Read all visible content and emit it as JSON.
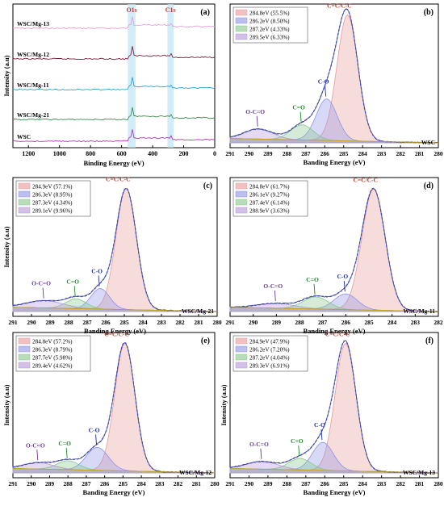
{
  "figure": {
    "panels_order": [
      "a",
      "b",
      "c",
      "d",
      "e",
      "f"
    ]
  },
  "chart_data": [
    {
      "panel": "(a)",
      "type": "line",
      "xlabel": "Binding Energy (eV)",
      "ylabel": "Intensity (a.u)",
      "xlim": [
        1300,
        0
      ],
      "xticks": [
        1200,
        1000,
        800,
        600,
        400,
        200,
        0
      ],
      "region_labels": [
        "O1s",
        "C1s"
      ],
      "regions_eV": [
        [
          510,
          560
        ],
        [
          265,
          305
        ]
      ],
      "series": [
        {
          "name": "WSC/Mg-13",
          "color": "#e6a0d8"
        },
        {
          "name": "WSC/Mg-12",
          "color": "#7a1e3c"
        },
        {
          "name": "WSC/Mg-11",
          "color": "#2aa3d8"
        },
        {
          "name": "WSC/Mg-21",
          "color": "#3c8a4a"
        },
        {
          "name": "WSC",
          "color": "#b23ab0"
        }
      ],
      "peaks_eV": [
        532,
        285
      ]
    },
    {
      "panel": "(b)",
      "type": "area",
      "sample": "WSC",
      "xlabel": "Banding Energy (eV)",
      "ylabel": "",
      "xlim": [
        291,
        280
      ],
      "components": [
        {
          "legend": "284.8eV (55.5%)",
          "center": 284.8,
          "height": 1.0,
          "sigma": 0.55,
          "color": "#e79a9a",
          "label": "C=C/C-C"
        },
        {
          "legend": "286.2eV (8.50%)",
          "center": 285.9,
          "height": 0.33,
          "sigma": 0.55,
          "color": "#8f93e6",
          "label": "C-O"
        },
        {
          "legend": "287.2eV (4.33%)",
          "center": 287.2,
          "height": 0.12,
          "sigma": 0.6,
          "color": "#88c78c",
          "label": "C=O"
        },
        {
          "legend": "289.5eV (6.33%)",
          "center": 289.5,
          "height": 0.08,
          "sigma": 0.75,
          "color": "#b596d6",
          "label": "O-C=O"
        }
      ]
    },
    {
      "panel": "(c)",
      "type": "area",
      "sample": "WSC/Mg-21",
      "xlabel": "Banding Energy (eV)",
      "ylabel": "Intensity (a.u)",
      "xlim": [
        291,
        280
      ],
      "components": [
        {
          "legend": "284.9eV (57.1%)",
          "center": 284.9,
          "height": 1.0,
          "sigma": 0.55,
          "color": "#e79a9a",
          "label": "C=C/C-C"
        },
        {
          "legend": "286.3eV (8.95%)",
          "center": 286.3,
          "height": 0.17,
          "sigma": 0.5,
          "color": "#8f93e6",
          "label": "C-O"
        },
        {
          "legend": "287.3eV (4.34%)",
          "center": 287.6,
          "height": 0.08,
          "sigma": 0.55,
          "color": "#88c78c",
          "label": "C=O"
        },
        {
          "legend": "289.1eV (9.96%)",
          "center": 289.3,
          "height": 0.06,
          "sigma": 1.0,
          "color": "#b596d6",
          "label": "O-C=O"
        }
      ]
    },
    {
      "panel": "(d)",
      "type": "area",
      "sample": "WSC/Mg-11",
      "xlabel": "Banding Energy (eV)",
      "ylabel": "",
      "xlim": [
        291,
        282
      ],
      "components": [
        {
          "legend": "284.8eV (61.7%)",
          "center": 284.8,
          "height": 1.0,
          "sigma": 0.5,
          "color": "#e79a9a",
          "label": "C=C/C-C"
        },
        {
          "legend": "286.1eV (9.27%)",
          "center": 286.0,
          "height": 0.13,
          "sigma": 0.5,
          "color": "#8f93e6",
          "label": "C-O"
        },
        {
          "legend": "287.4eV (6.14%)",
          "center": 287.3,
          "height": 0.1,
          "sigma": 0.55,
          "color": "#88c78c",
          "label": "C=O"
        },
        {
          "legend": "288.9eV (3.63%)",
          "center": 289.0,
          "height": 0.04,
          "sigma": 0.8,
          "color": "#b596d6",
          "label": "O-C=O"
        }
      ]
    },
    {
      "panel": "(e)",
      "type": "area",
      "sample": "WSC/Mg-12",
      "xlabel": "Banding Energy (eV)",
      "ylabel": "Intensity (a.u)",
      "xlim": [
        291,
        280
      ],
      "components": [
        {
          "legend": "284.8eV (57.2%)",
          "center": 284.9,
          "height": 1.0,
          "sigma": 0.55,
          "color": "#e79a9a",
          "label": "C=C/C-C"
        },
        {
          "legend": "286.3eV (8.79%)",
          "center": 286.4,
          "height": 0.18,
          "sigma": 0.6,
          "color": "#8f93e6",
          "label": "C-O"
        },
        {
          "legend": "287.7eV (5.98%)",
          "center": 288.0,
          "height": 0.07,
          "sigma": 0.6,
          "color": "#88c78c",
          "label": "C=O"
        },
        {
          "legend": "289.4eV (4.62%)",
          "center": 289.6,
          "height": 0.05,
          "sigma": 0.8,
          "color": "#b596d6",
          "label": "O-C=O"
        }
      ]
    },
    {
      "panel": "(f)",
      "type": "area",
      "sample": "WSC/Mg-13",
      "xlabel": "Banding Energy (eV)",
      "ylabel": "Intensity (a.u)",
      "xlim": [
        291,
        280
      ],
      "components": [
        {
          "legend": "284.9eV (47.9%)",
          "center": 284.9,
          "height": 1.0,
          "sigma": 0.55,
          "color": "#e79a9a",
          "label": "C=C/C-C"
        },
        {
          "legend": "286.2eV (7.20%)",
          "center": 286.1,
          "height": 0.22,
          "sigma": 0.55,
          "color": "#8f93e6",
          "label": "C-O"
        },
        {
          "legend": "287.2eV (4.04%)",
          "center": 287.3,
          "height": 0.09,
          "sigma": 0.6,
          "color": "#88c78c",
          "label": "C=O"
        },
        {
          "legend": "289.3eV (6.91%)",
          "center": 289.3,
          "height": 0.06,
          "sigma": 0.85,
          "color": "#b596d6",
          "label": "O-C=O"
        }
      ]
    }
  ]
}
